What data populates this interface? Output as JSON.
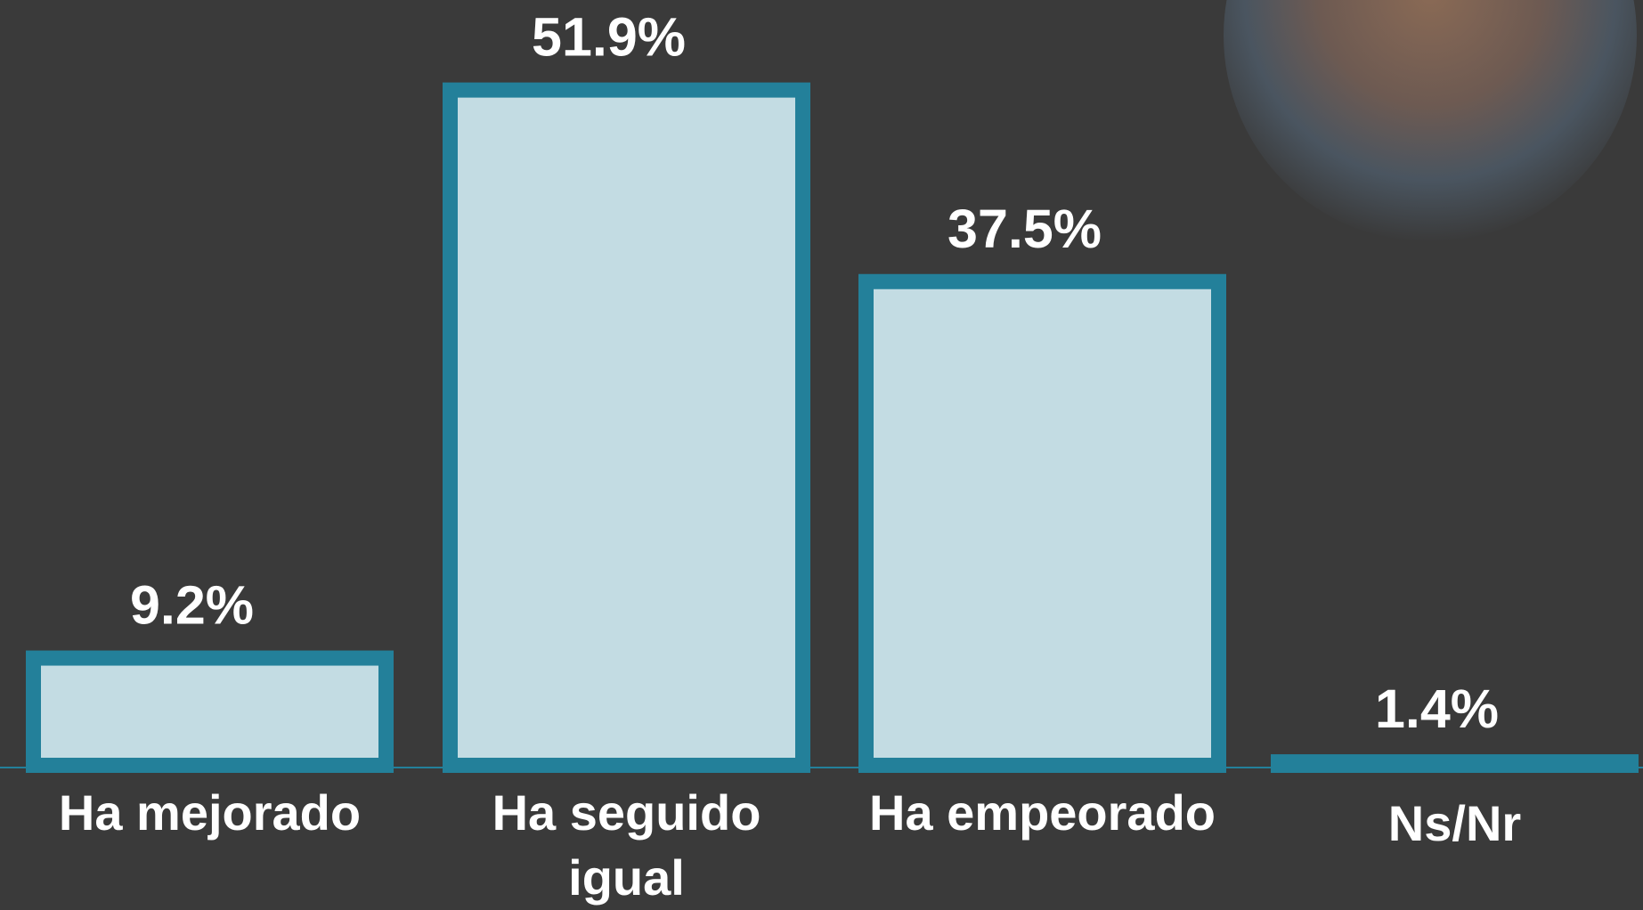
{
  "chart_data": {
    "type": "bar",
    "categories": [
      "Ha mejorado",
      "Ha seguido igual",
      "Ha empeorado",
      "Ns/Nr"
    ],
    "values": [
      9.2,
      51.9,
      37.5,
      1.4
    ],
    "value_labels": [
      "9.2%",
      "51.9%",
      "37.5%",
      "1.4%"
    ],
    "color": "#c3dce3",
    "edge_color": "#23809a"
  }
}
